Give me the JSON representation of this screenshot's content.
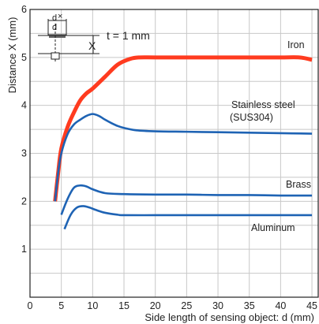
{
  "chart_data": {
    "type": "line",
    "title": "",
    "xlabel": "Side length of sensing object: d (mm)",
    "ylabel": "Distance X (mm)",
    "xlim": [
      0,
      46
    ],
    "ylim": [
      0,
      6
    ],
    "xticks": [
      0,
      5,
      10,
      15,
      20,
      25,
      30,
      35,
      40,
      45
    ],
    "yticks": [
      1,
      2,
      3,
      4,
      5,
      6
    ],
    "grid": true,
    "annotation": "t = 1 mm",
    "inset_labels": {
      "d_top": "d",
      "d_side": "d",
      "x_label": "X"
    },
    "series": [
      {
        "name": "Iron",
        "color": "#ff3b1f",
        "x": [
          4,
          4.5,
          5,
          6,
          7,
          8,
          9,
          10,
          12,
          14,
          16,
          17.5,
          20,
          25,
          30,
          35,
          40,
          43,
          45
        ],
        "y": [
          2.0,
          2.6,
          3.1,
          3.55,
          3.85,
          4.1,
          4.25,
          4.35,
          4.6,
          4.85,
          4.97,
          5.0,
          5.0,
          5.0,
          5.0,
          5.0,
          5.0,
          5.0,
          4.95
        ]
      },
      {
        "name": "Stainless steel\n(SUS304)",
        "color": "#1e63b4",
        "x": [
          4,
          4.5,
          5,
          6,
          7,
          8,
          9,
          10,
          11,
          12,
          13,
          14,
          15,
          17,
          20,
          25,
          30,
          35,
          40,
          45
        ],
        "y": [
          2.0,
          2.6,
          3.0,
          3.4,
          3.6,
          3.7,
          3.78,
          3.82,
          3.78,
          3.7,
          3.63,
          3.57,
          3.53,
          3.48,
          3.46,
          3.45,
          3.44,
          3.43,
          3.42,
          3.41
        ]
      },
      {
        "name": "Brass",
        "color": "#1e63b4",
        "x": [
          5,
          6,
          7,
          8,
          9,
          10,
          12,
          15,
          20,
          25,
          30,
          35,
          40,
          45
        ],
        "y": [
          1.72,
          2.05,
          2.28,
          2.33,
          2.31,
          2.25,
          2.17,
          2.15,
          2.14,
          2.14,
          2.13,
          2.13,
          2.12,
          2.12
        ]
      },
      {
        "name": "Aluminum",
        "color": "#1e63b4",
        "x": [
          5.5,
          6.5,
          7.5,
          8.5,
          9.5,
          10.5,
          12,
          14,
          15,
          20,
          25,
          30,
          35,
          40,
          45
        ],
        "y": [
          1.42,
          1.72,
          1.87,
          1.9,
          1.87,
          1.82,
          1.76,
          1.72,
          1.71,
          1.71,
          1.71,
          1.71,
          1.71,
          1.71,
          1.71
        ]
      }
    ]
  }
}
